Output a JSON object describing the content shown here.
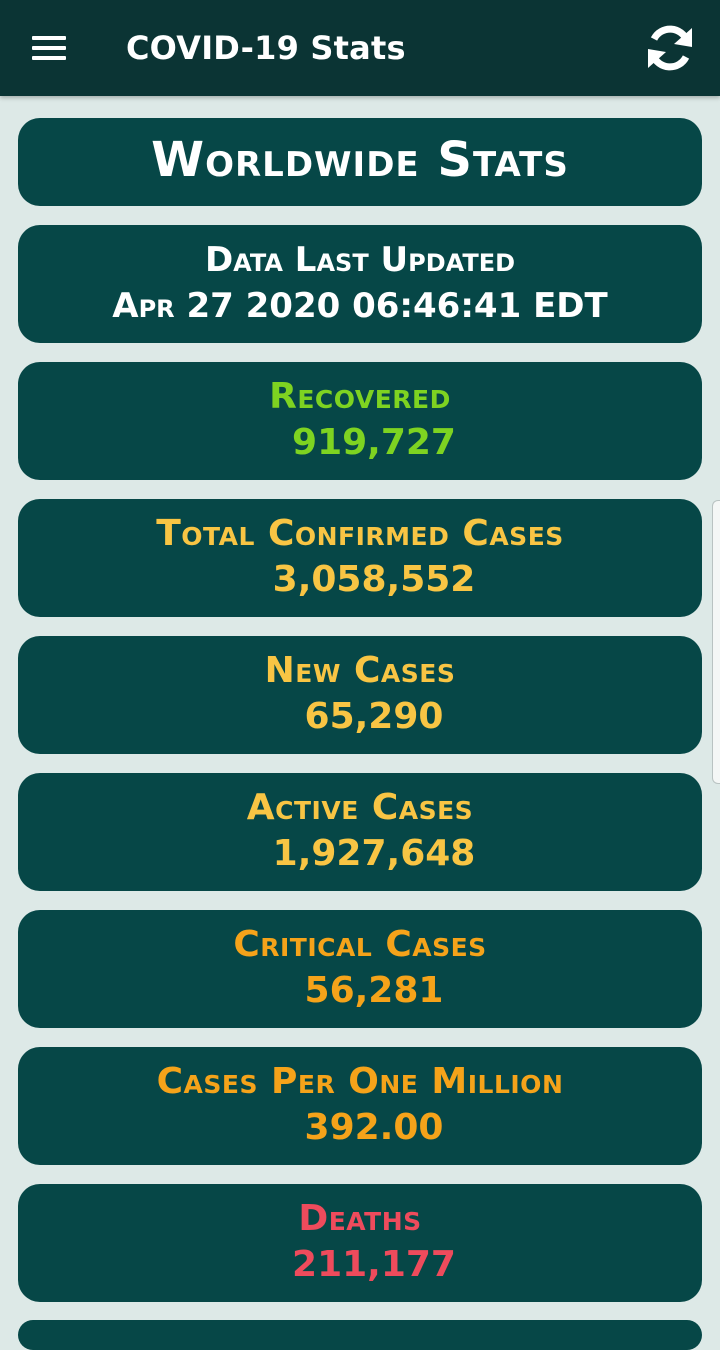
{
  "appbar": {
    "title": "COVID-19 Stats",
    "menu_icon": "menu-icon",
    "refresh_icon": "refresh-icon"
  },
  "colors": {
    "appbar_bg": "#0b3434",
    "card_bg": "#064747",
    "page_bg": "#dde9e7",
    "recovered": "#7ed321",
    "yellow": "#f8c544",
    "orange": "#f5a31a",
    "deaths": "#ee4b5c"
  },
  "header": {
    "title": "Worldwide Stats"
  },
  "updated": {
    "label": "Data Last Updated",
    "value": "Apr 27 2020 06:46:41 EDT"
  },
  "stats": [
    {
      "label": "Recovered",
      "value": "919,727",
      "color": "#7ed321"
    },
    {
      "label": "Total Confirmed Cases",
      "value": "3,058,552",
      "color": "#f8c544"
    },
    {
      "label": "New Cases",
      "value": "65,290",
      "color": "#f8c544"
    },
    {
      "label": "Active Cases",
      "value": "1,927,648",
      "color": "#f8c544"
    },
    {
      "label": "Critical Cases",
      "value": "56,281",
      "color": "#f5a31a"
    },
    {
      "label": "Cases Per One Million",
      "value": "392.00",
      "color": "#f5a31a"
    },
    {
      "label": "Deaths",
      "value": "211,177",
      "color": "#ee4b5c"
    }
  ]
}
